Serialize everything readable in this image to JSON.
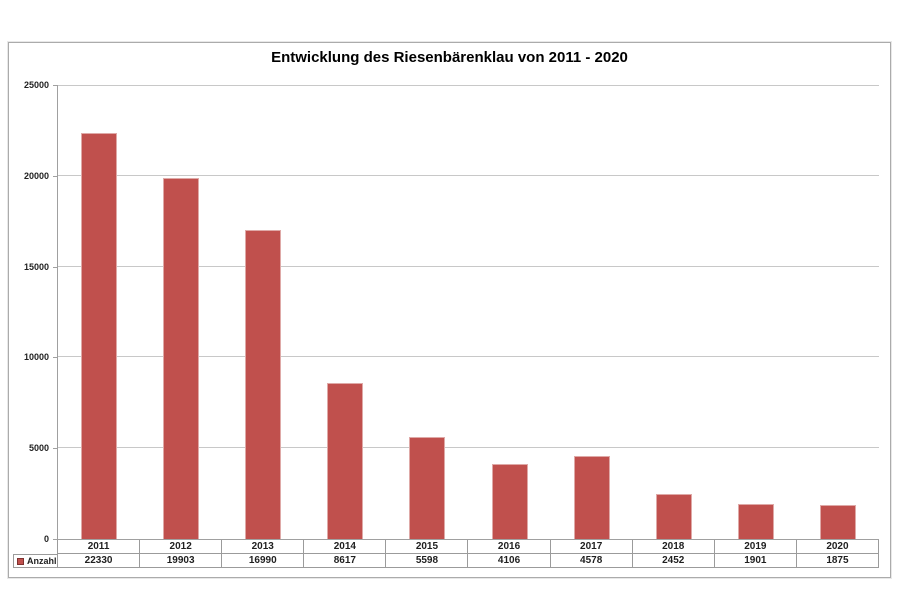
{
  "colors": {
    "bar": "#c0504d",
    "bar_edge": "#dfa9a7",
    "gridline": "#c8c8c8",
    "axis": "#a0a0a0",
    "table_border": "#9b9b9b",
    "frame_border": "#ababab",
    "text": "#1f1f1f"
  },
  "chart_data": {
    "type": "bar",
    "title": "Entwicklung des Riesenbärenklau von 2011 - 2020",
    "categories": [
      "2011",
      "2012",
      "2013",
      "2014",
      "2015",
      "2016",
      "2017",
      "2018",
      "2019",
      "2020"
    ],
    "series": [
      {
        "name": "Anzahl",
        "values": [
          22330,
          19903,
          16990,
          8617,
          5598,
          4106,
          4578,
          2452,
          1901,
          1875
        ]
      }
    ],
    "xlabel": "",
    "ylabel": "",
    "ylim": [
      0,
      25000
    ],
    "yticks": [
      0,
      5000,
      10000,
      15000,
      20000,
      25000
    ],
    "grid": true,
    "legend_position": "bottom-left",
    "data_table_shown": true
  }
}
